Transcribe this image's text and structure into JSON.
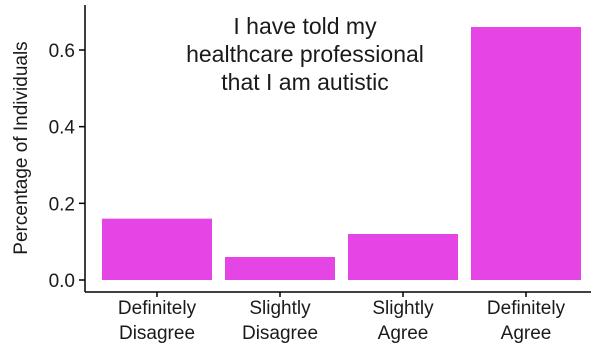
{
  "chart_data": {
    "type": "bar",
    "title": [
      "I have told my",
      "healthcare professional",
      "that I am autistic"
    ],
    "ylabel": "Percentage of Individuals",
    "xlabel": "",
    "categories": [
      [
        "Definitely",
        "Disagree"
      ],
      [
        "Slightly",
        "Disagree"
      ],
      [
        "Slightly",
        "Agree"
      ],
      [
        "Definitely",
        "Agree"
      ]
    ],
    "values": [
      0.16,
      0.06,
      0.12,
      0.66
    ],
    "ylim": [
      0,
      0.72
    ],
    "yticks": [
      0.0,
      0.2,
      0.4,
      0.6
    ],
    "ytick_labels": [
      "0.0",
      "0.2",
      "0.4",
      "0.6"
    ],
    "bar_color": "#e645e6",
    "axis_color": "#000000",
    "grid": false,
    "legend": "none"
  }
}
